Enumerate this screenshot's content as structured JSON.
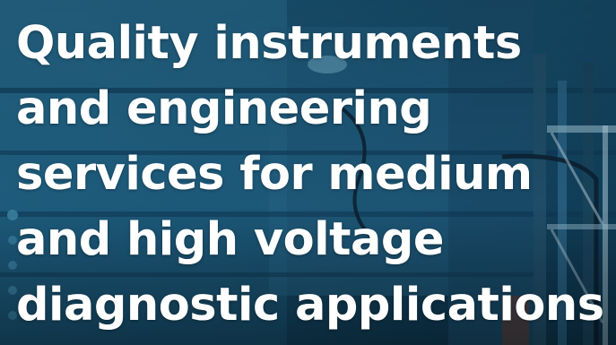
{
  "hero": {
    "image": "high-voltage-equipment-photo",
    "overlay_color": "#0f3f5c",
    "text_color": "#ffffff",
    "headline_lines": [
      "Quality instruments",
      "and engineering",
      "services for medium",
      "and high voltage",
      "diagnostic applications"
    ]
  }
}
